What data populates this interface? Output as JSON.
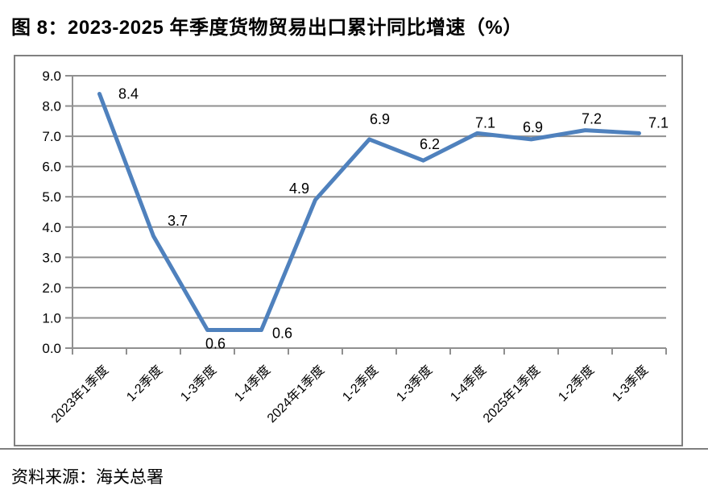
{
  "page": {
    "title": "图 8：2023-2025 年季度货物贸易出口累计同比增速（%）",
    "source": "资料来源：海关总署"
  },
  "colors": {
    "line": "#4F81BD",
    "grid": "#909090",
    "axis": "#909090",
    "box_border": "#808080",
    "text": "#000000",
    "separator": "#7f7f7f"
  },
  "chart_data": {
    "type": "line",
    "title": "2023-2025 年季度货物贸易出口累计同比增速（%）",
    "categories": [
      "2023年1季度",
      "1-2季度",
      "1-3季度",
      "1-4季度",
      "2024年1季度",
      "1-2季度",
      "1-3季度",
      "1-4季度",
      "2025年1季度",
      "1-2季度",
      "1-3季度"
    ],
    "values": [
      8.4,
      3.7,
      0.6,
      0.6,
      4.9,
      6.9,
      6.2,
      7.1,
      6.9,
      7.2,
      7.1
    ],
    "data_labels": [
      "8.4",
      "3.7",
      "0.6",
      "0.6",
      "4.9",
      "6.9",
      "6.2",
      "7.1",
      "6.9",
      "7.2",
      "7.1"
    ],
    "xlabel": "",
    "ylabel": "",
    "ylim": [
      0,
      9
    ],
    "ytick_step": 1,
    "ytick_labels": [
      "0.0",
      "1.0",
      "2.0",
      "3.0",
      "4.0",
      "5.0",
      "6.0",
      "7.0",
      "8.0",
      "9.0"
    ],
    "grid": true,
    "legend_position": "none"
  }
}
